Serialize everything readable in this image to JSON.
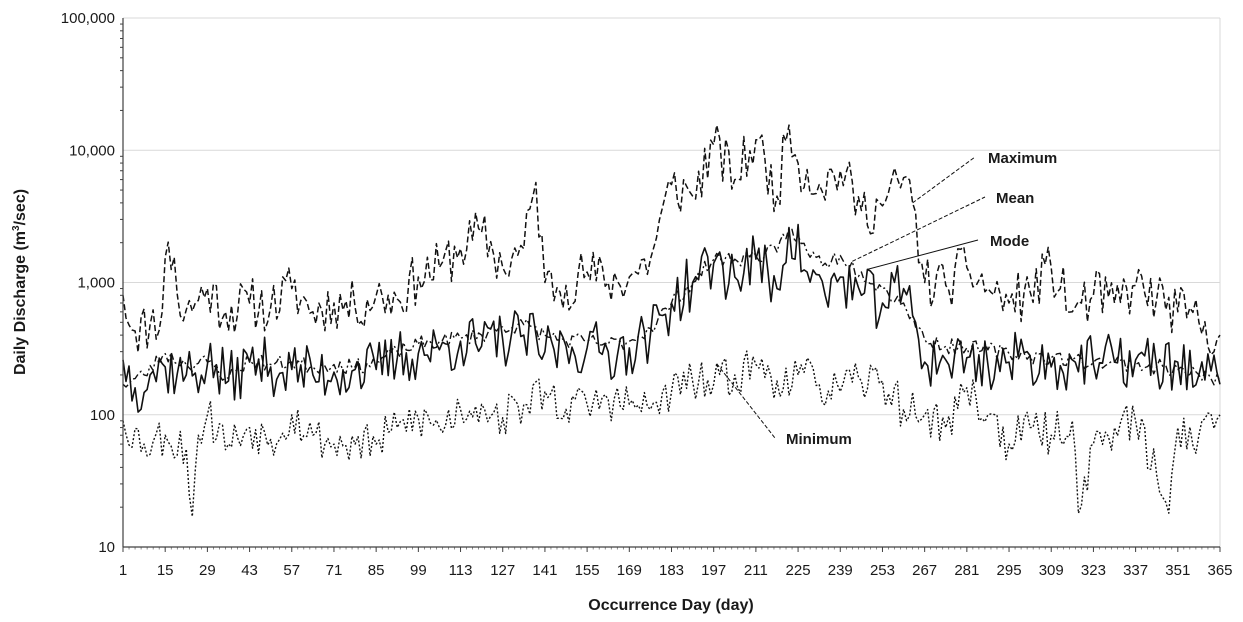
{
  "chart_data": {
    "type": "line",
    "title": "",
    "xlabel": "Occurrence Day (day)",
    "ylabel_parts": {
      "before": "Daily Discharge (m",
      "sup": "3",
      "after": "/sec)"
    },
    "yscale": "log",
    "ylim": [
      10,
      100000
    ],
    "xlim": [
      1,
      365
    ],
    "x_ticks": [
      "1",
      "15",
      "29",
      "43",
      "57",
      "71",
      "85",
      "99",
      "113",
      "127",
      "141",
      "155",
      "169",
      "183",
      "197",
      "211",
      "225",
      "239",
      "253",
      "267",
      "281",
      "295",
      "309",
      "323",
      "337",
      "351",
      "365"
    ],
    "y_ticks": [
      "10",
      "100",
      "1,000",
      "10,000",
      "100,000"
    ],
    "y_tick_values": [
      10,
      100,
      1000,
      10000,
      100000
    ],
    "grid": true,
    "series": [
      {
        "name": "Maximum",
        "style": "dashed",
        "anchors": [
          [
            1,
            800
          ],
          [
            5,
            430
          ],
          [
            10,
            480
          ],
          [
            14,
            600
          ],
          [
            15,
            1550
          ],
          [
            18,
            1550
          ],
          [
            20,
            560
          ],
          [
            25,
            700
          ],
          [
            29,
            900
          ],
          [
            35,
            600
          ],
          [
            43,
            700
          ],
          [
            50,
            650
          ],
          [
            57,
            900
          ],
          [
            64,
            600
          ],
          [
            71,
            700
          ],
          [
            78,
            650
          ],
          [
            85,
            800
          ],
          [
            92,
            750
          ],
          [
            99,
            1100
          ],
          [
            106,
            1300
          ],
          [
            113,
            1800
          ],
          [
            120,
            2400
          ],
          [
            127,
            1300
          ],
          [
            134,
            1800
          ],
          [
            138,
            5700
          ],
          [
            141,
            1000
          ],
          [
            148,
            950
          ],
          [
            155,
            1200
          ],
          [
            162,
            1000
          ],
          [
            169,
            1100
          ],
          [
            176,
            1500
          ],
          [
            183,
            5500
          ],
          [
            190,
            4500
          ],
          [
            197,
            11000
          ],
          [
            204,
            6000
          ],
          [
            211,
            12000
          ],
          [
            218,
            4500
          ],
          [
            222,
            15500
          ],
          [
            225,
            8000
          ],
          [
            232,
            5500
          ],
          [
            239,
            7000
          ],
          [
            246,
            3500
          ],
          [
            253,
            3800
          ],
          [
            260,
            6200
          ],
          [
            263,
            4000
          ],
          [
            267,
            1000
          ],
          [
            274,
            950
          ],
          [
            281,
            1300
          ],
          [
            288,
            900
          ],
          [
            295,
            700
          ],
          [
            302,
            850
          ],
          [
            309,
            1300
          ],
          [
            316,
            600
          ],
          [
            323,
            800
          ],
          [
            330,
            700
          ],
          [
            337,
            950
          ],
          [
            344,
            750
          ],
          [
            351,
            600
          ],
          [
            358,
            500
          ],
          [
            365,
            400
          ]
        ],
        "noise": 0.2,
        "seed": 11
      },
      {
        "name": "Mean",
        "style": "dashdot",
        "anchors": [
          [
            1,
            170
          ],
          [
            8,
            200
          ],
          [
            15,
            290
          ],
          [
            22,
            240
          ],
          [
            29,
            250
          ],
          [
            36,
            190
          ],
          [
            43,
            260
          ],
          [
            50,
            240
          ],
          [
            57,
            250
          ],
          [
            64,
            230
          ],
          [
            71,
            240
          ],
          [
            78,
            230
          ],
          [
            85,
            250
          ],
          [
            92,
            300
          ],
          [
            99,
            340
          ],
          [
            106,
            360
          ],
          [
            113,
            380
          ],
          [
            120,
            400
          ],
          [
            127,
            460
          ],
          [
            134,
            480
          ],
          [
            141,
            400
          ],
          [
            148,
            360
          ],
          [
            155,
            360
          ],
          [
            162,
            340
          ],
          [
            169,
            360
          ],
          [
            176,
            450
          ],
          [
            183,
            700
          ],
          [
            190,
            1000
          ],
          [
            197,
            1500
          ],
          [
            204,
            1500
          ],
          [
            211,
            1600
          ],
          [
            218,
            1700
          ],
          [
            222,
            2600
          ],
          [
            228,
            1700
          ],
          [
            234,
            1400
          ],
          [
            239,
            1600
          ],
          [
            246,
            1200
          ],
          [
            253,
            900
          ],
          [
            260,
            700
          ],
          [
            267,
            370
          ],
          [
            274,
            330
          ],
          [
            281,
            320
          ],
          [
            288,
            310
          ],
          [
            295,
            290
          ],
          [
            302,
            280
          ],
          [
            309,
            270
          ],
          [
            316,
            260
          ],
          [
            323,
            250
          ],
          [
            330,
            250
          ],
          [
            337,
            240
          ],
          [
            344,
            230
          ],
          [
            351,
            220
          ],
          [
            358,
            200
          ],
          [
            365,
            180
          ]
        ],
        "noise": 0.06,
        "seed": 23
      },
      {
        "name": "Mode",
        "style": "solid",
        "anchors": [
          [
            1,
            260
          ],
          [
            5,
            160
          ],
          [
            10,
            200
          ],
          [
            15,
            230
          ],
          [
            22,
            200
          ],
          [
            29,
            240
          ],
          [
            36,
            180
          ],
          [
            43,
            250
          ],
          [
            50,
            230
          ],
          [
            57,
            220
          ],
          [
            64,
            200
          ],
          [
            71,
            210
          ],
          [
            78,
            220
          ],
          [
            85,
            220
          ],
          [
            92,
            270
          ],
          [
            99,
            290
          ],
          [
            106,
            310
          ],
          [
            113,
            360
          ],
          [
            120,
            330
          ],
          [
            127,
            370
          ],
          [
            134,
            400
          ],
          [
            141,
            300
          ],
          [
            148,
            330
          ],
          [
            155,
            320
          ],
          [
            162,
            300
          ],
          [
            169,
            320
          ],
          [
            176,
            400
          ],
          [
            183,
            700
          ],
          [
            190,
            1000
          ],
          [
            197,
            1400
          ],
          [
            204,
            1100
          ],
          [
            211,
            1500
          ],
          [
            218,
            900
          ],
          [
            222,
            2600
          ],
          [
            228,
            1200
          ],
          [
            234,
            800
          ],
          [
            239,
            1100
          ],
          [
            246,
            800
          ],
          [
            253,
            700
          ],
          [
            260,
            900
          ],
          [
            264,
            500
          ],
          [
            267,
            250
          ],
          [
            274,
            260
          ],
          [
            281,
            270
          ],
          [
            288,
            240
          ],
          [
            295,
            250
          ],
          [
            302,
            280
          ],
          [
            309,
            230
          ],
          [
            316,
            260
          ],
          [
            323,
            240
          ],
          [
            330,
            250
          ],
          [
            337,
            260
          ],
          [
            344,
            230
          ],
          [
            351,
            250
          ],
          [
            358,
            200
          ],
          [
            365,
            170
          ]
        ],
        "noise": 0.22,
        "seed": 37
      },
      {
        "name": "Minimum",
        "style": "dotted",
        "anchors": [
          [
            1,
            90
          ],
          [
            8,
            60
          ],
          [
            15,
            70
          ],
          [
            22,
            55
          ],
          [
            24,
            17
          ],
          [
            26,
            70
          ],
          [
            29,
            100
          ],
          [
            36,
            60
          ],
          [
            43,
            80
          ],
          [
            50,
            65
          ],
          [
            57,
            100
          ],
          [
            64,
            70
          ],
          [
            71,
            60
          ],
          [
            78,
            60
          ],
          [
            85,
            60
          ],
          [
            92,
            80
          ],
          [
            99,
            95
          ],
          [
            106,
            80
          ],
          [
            113,
            110
          ],
          [
            120,
            120
          ],
          [
            127,
            95
          ],
          [
            134,
            120
          ],
          [
            141,
            150
          ],
          [
            148,
            110
          ],
          [
            155,
            120
          ],
          [
            162,
            130
          ],
          [
            169,
            120
          ],
          [
            176,
            110
          ],
          [
            183,
            150
          ],
          [
            190,
            180
          ],
          [
            197,
            170
          ],
          [
            204,
            200
          ],
          [
            211,
            240
          ],
          [
            218,
            180
          ],
          [
            225,
            200
          ],
          [
            232,
            170
          ],
          [
            239,
            150
          ],
          [
            246,
            180
          ],
          [
            253,
            180
          ],
          [
            260,
            110
          ],
          [
            267,
            100
          ],
          [
            274,
            80
          ],
          [
            281,
            160
          ],
          [
            288,
            100
          ],
          [
            295,
            60
          ],
          [
            302,
            80
          ],
          [
            309,
            70
          ],
          [
            316,
            90
          ],
          [
            318,
            18
          ],
          [
            323,
            60
          ],
          [
            330,
            80
          ],
          [
            337,
            90
          ],
          [
            344,
            35
          ],
          [
            348,
            18
          ],
          [
            351,
            80
          ],
          [
            358,
            70
          ],
          [
            365,
            100
          ]
        ],
        "noise": 0.16,
        "seed": 53
      }
    ],
    "annotations": [
      {
        "text": "Maximum",
        "series": "Maximum"
      },
      {
        "text": "Mean",
        "series": "Mean"
      },
      {
        "text": "Mode",
        "series": "Mode"
      },
      {
        "text": "Minimum",
        "series": "Minimum"
      }
    ]
  }
}
